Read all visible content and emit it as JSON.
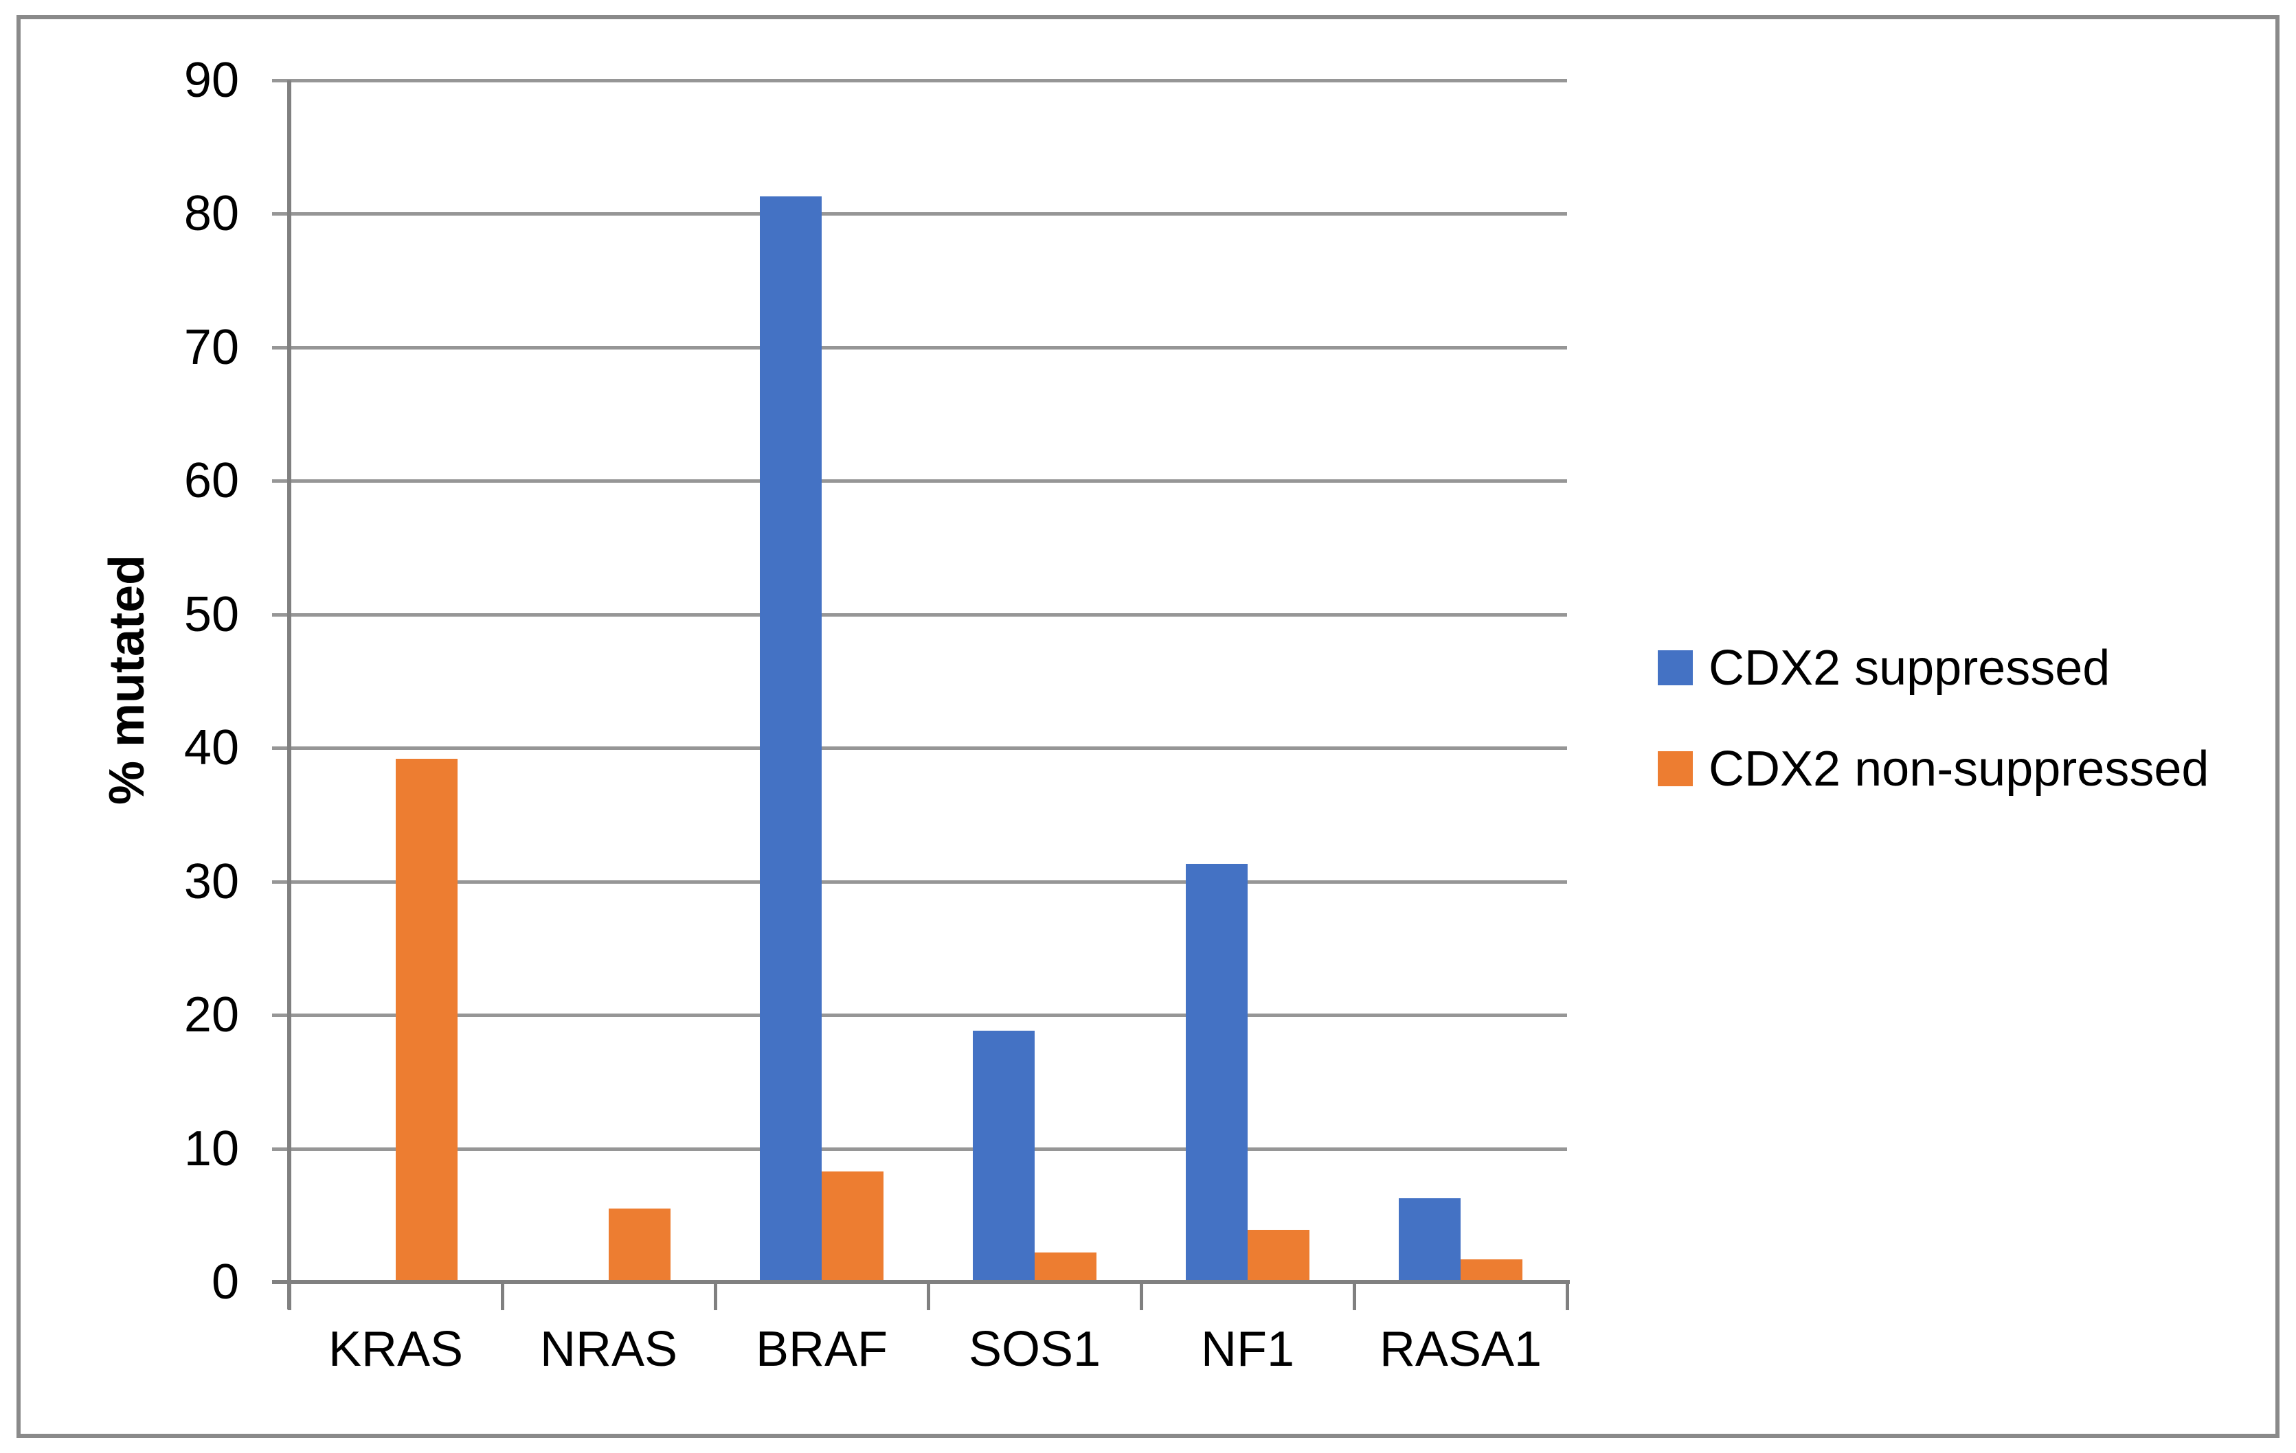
{
  "figure": {
    "background": "#ffffff",
    "border_color": "#8a8a8a"
  },
  "chart_data": {
    "type": "bar",
    "title": "",
    "xlabel": "",
    "ylabel": "% mutated",
    "categories": [
      "KRAS",
      "NRAS",
      "BRAF",
      "SOS1",
      "NF1",
      "RASA1"
    ],
    "series": [
      {
        "name": "CDX2 suppressed",
        "color": "#4472C4",
        "values": [
          0,
          0,
          81.3,
          18.8,
          31.3,
          6.3
        ]
      },
      {
        "name": "CDX2 non-suppressed",
        "color": "#ED7D31",
        "values": [
          39.2,
          5.5,
          8.3,
          2.2,
          3.9,
          1.7
        ]
      }
    ],
    "ylim": [
      0,
      90
    ],
    "ytick_step": 10,
    "ytick_labels": [
      "0",
      "10",
      "20",
      "30",
      "40",
      "50",
      "60",
      "70",
      "80",
      "90"
    ],
    "grid": "horizontal",
    "gridline_color": "#969696",
    "axis_color": "#808080",
    "text_color": "#000000",
    "legend_position": "right-middle"
  }
}
